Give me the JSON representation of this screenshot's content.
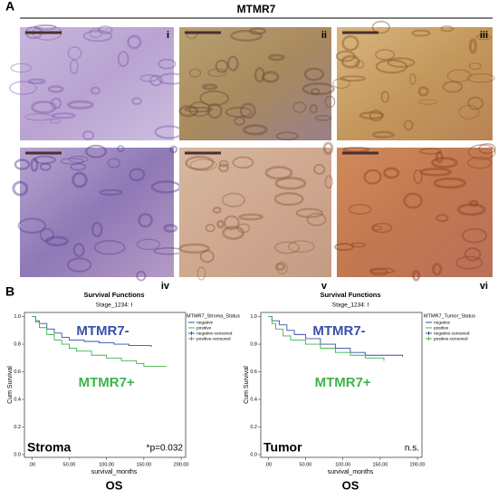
{
  "panel_a": {
    "label": "A",
    "title": "MTMR7",
    "images": [
      "i",
      "ii",
      "iii",
      "iv",
      "v",
      "vi"
    ]
  },
  "panel_b": {
    "label": "B"
  },
  "chart_data": [
    {
      "type": "line",
      "step": true,
      "title": "Survival Functions",
      "subtitle": "Stage_1234: I",
      "x_label": "survival_months",
      "y_label": "Cum Survival",
      "caption": "OS",
      "legend_title": "MTMR7_Stroma_Status",
      "annotations": {
        "group": "Stroma",
        "stat": "*p=0.032",
        "upper": "MTMR7-",
        "lower": "MTMR7+"
      },
      "xlim": [
        -10,
        206
      ],
      "ylim": [
        -0.02,
        1.03
      ],
      "xticks": [
        {
          "value": 0,
          "label": ".00"
        },
        {
          "value": 50,
          "label": "50.00"
        },
        {
          "value": 100,
          "label": "100.00"
        },
        {
          "value": 150,
          "label": "150.00"
        },
        {
          "value": 200,
          "label": "200.00"
        }
      ],
      "yticks": [
        {
          "value": 0,
          "label": "0.0"
        },
        {
          "value": 0.2,
          "label": "0.2"
        },
        {
          "value": 0.4,
          "label": "0.4"
        },
        {
          "value": 0.6,
          "label": "0.6"
        },
        {
          "value": 0.8,
          "label": "0.8"
        },
        {
          "value": 1,
          "label": "1.0"
        }
      ],
      "series": [
        {
          "name": "negative",
          "censored_name": "negative-censored",
          "color": "#3a4fa8",
          "x": [
            0,
            5,
            10,
            20,
            30,
            40,
            50,
            70,
            90,
            110,
            130,
            160
          ],
          "values": [
            1,
            0.97,
            0.95,
            0.91,
            0.88,
            0.85,
            0.83,
            0.82,
            0.81,
            0.8,
            0.79,
            0.78
          ]
        },
        {
          "name": "positive",
          "censored_name": "positive-censored",
          "color": "#3fb34a",
          "x": [
            0,
            5,
            10,
            20,
            30,
            40,
            50,
            60,
            80,
            100,
            120,
            140,
            150,
            180
          ],
          "values": [
            1,
            0.96,
            0.92,
            0.87,
            0.83,
            0.8,
            0.77,
            0.75,
            0.72,
            0.7,
            0.68,
            0.66,
            0.64,
            0.64
          ]
        }
      ]
    },
    {
      "type": "line",
      "step": true,
      "title": "Survival Functions",
      "subtitle": "Stage_1234: I",
      "x_label": "survival_months",
      "y_label": "Cum Survival",
      "caption": "OS",
      "legend_title": "MTMR7_Tumor_Status",
      "annotations": {
        "group": "Tumor",
        "stat": "n.s.",
        "upper": "MTMR7-",
        "lower": "MTMR7+"
      },
      "xlim": [
        -10,
        206
      ],
      "ylim": [
        -0.02,
        1.03
      ],
      "xticks": [
        {
          "value": 0,
          "label": ".00"
        },
        {
          "value": 50,
          "label": "50.00"
        },
        {
          "value": 100,
          "label": "100.00"
        },
        {
          "value": 150,
          "label": "150.00"
        },
        {
          "value": 200,
          "label": "200.00"
        }
      ],
      "yticks": [
        {
          "value": 0,
          "label": "0.0"
        },
        {
          "value": 0.2,
          "label": "0.2"
        },
        {
          "value": 0.4,
          "label": "0.4"
        },
        {
          "value": 0.6,
          "label": "0.6"
        },
        {
          "value": 0.8,
          "label": "0.8"
        },
        {
          "value": 1,
          "label": "1.0"
        }
      ],
      "series": [
        {
          "name": "negative",
          "censored_name": "negative-censored",
          "color": "#3a4fa8",
          "x": [
            0,
            5,
            15,
            25,
            35,
            50,
            70,
            90,
            110,
            130,
            180
          ],
          "values": [
            1,
            0.97,
            0.94,
            0.9,
            0.87,
            0.84,
            0.8,
            0.77,
            0.74,
            0.72,
            0.71
          ]
        },
        {
          "name": "positive",
          "censored_name": "positive-censored",
          "color": "#3fb34a",
          "x": [
            0,
            5,
            10,
            20,
            30,
            50,
            70,
            90,
            110,
            130,
            155
          ],
          "values": [
            1,
            0.95,
            0.91,
            0.86,
            0.83,
            0.8,
            0.77,
            0.74,
            0.72,
            0.7,
            0.68
          ]
        }
      ]
    }
  ]
}
